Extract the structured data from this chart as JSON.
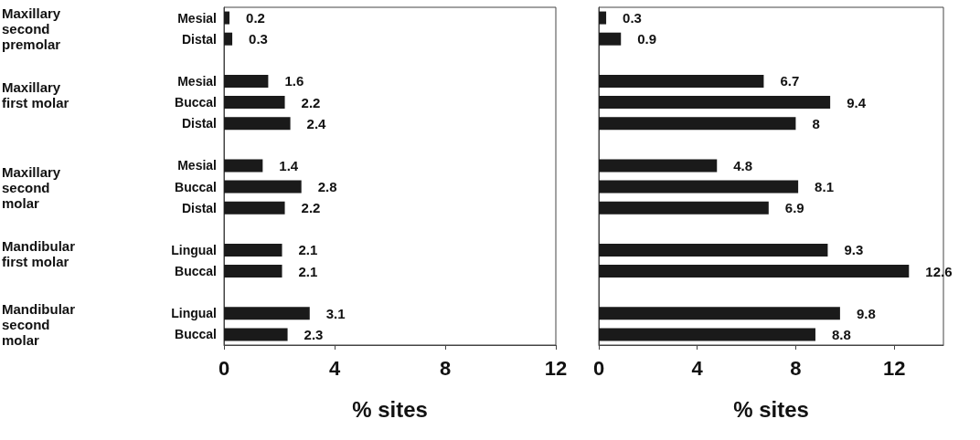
{
  "chart_data": [
    {
      "type": "bar",
      "orientation": "horizontal",
      "color": "#1a1a1a",
      "xlabel": "% sites",
      "xlim": [
        0,
        12
      ],
      "xticks": [
        0,
        4,
        8,
        12
      ],
      "data_labels": true,
      "grid": false,
      "categories": [
        "Mesial",
        "Distal",
        null,
        "Mesial",
        "Buccal",
        "Distal",
        null,
        "Mesial",
        "Buccal",
        "Distal",
        null,
        "Lingual",
        "Buccal",
        null,
        "Lingual",
        "Buccal"
      ],
      "values": [
        0.2,
        0.3,
        null,
        1.6,
        2.2,
        2.4,
        null,
        1.4,
        2.8,
        2.2,
        null,
        2.1,
        2.1,
        null,
        3.1,
        2.3
      ],
      "annotations": [
        "Maxillary second premolar",
        "Maxillary first molar",
        "Maxillary second molar",
        "Mandibular first molar",
        "Mandibular second molar"
      ]
    },
    {
      "type": "bar",
      "orientation": "horizontal",
      "color": "#1a1a1a",
      "xlabel": "% sites",
      "xlim": [
        0,
        14
      ],
      "xticks": [
        0,
        4,
        8,
        12
      ],
      "data_labels": true,
      "grid": false,
      "tick_labels": "x",
      "categories": [
        null,
        null,
        null,
        null,
        null,
        null,
        null,
        null,
        null,
        null,
        null,
        null,
        null,
        null,
        null,
        null
      ],
      "values": [
        0.3,
        0.9,
        null,
        6.7,
        9.4,
        8,
        null,
        4.8,
        8.1,
        6.9,
        null,
        9.3,
        12.6,
        null,
        9.8,
        8.8
      ]
    }
  ]
}
